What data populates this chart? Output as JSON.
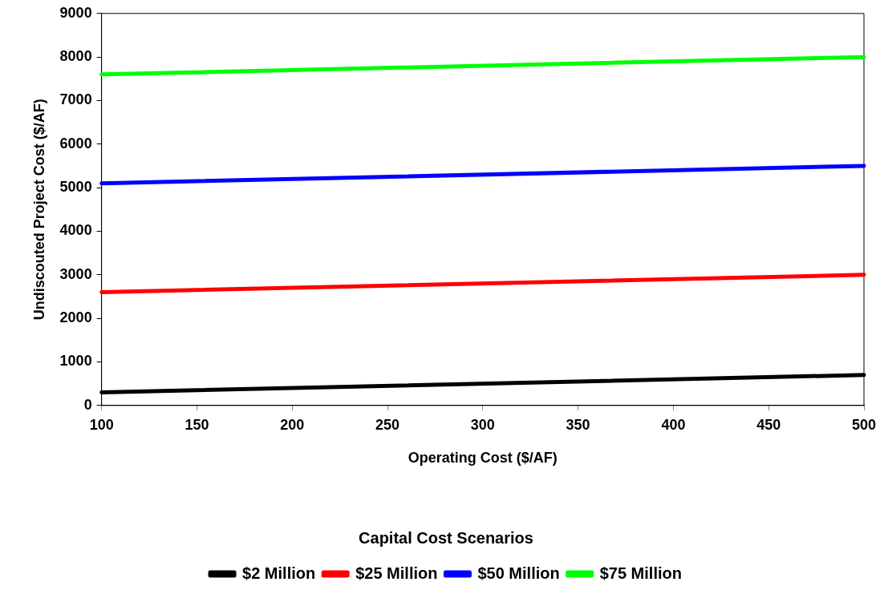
{
  "chart_data": {
    "type": "line",
    "xlabel": "Operating Cost ($/AF)",
    "ylabel": "Undiscouted Project Cost ($/AF)",
    "legend_title": "Capital Cost Scenarios",
    "legend": "bottom",
    "grid": false,
    "marker": "none",
    "line_style": "solid",
    "x": [
      100,
      500
    ],
    "xlim": [
      100,
      500
    ],
    "xticks": [
      100,
      150,
      200,
      250,
      300,
      350,
      400,
      450,
      500
    ],
    "ylim": [
      0,
      9000
    ],
    "yticks": [
      0,
      1000,
      2000,
      3000,
      4000,
      5000,
      6000,
      7000,
      8000,
      9000
    ],
    "series": [
      {
        "name": "$2 Million",
        "color": "#000000",
        "values": [
          300,
          700
        ]
      },
      {
        "name": "$25 Million",
        "color": "#ff0000",
        "values": [
          2600,
          3000
        ]
      },
      {
        "name": "$50 Million",
        "color": "#0000ff",
        "values": [
          5100,
          5500
        ]
      },
      {
        "name": "$75 Million",
        "color": "#00ff00",
        "values": [
          7600,
          8000
        ]
      }
    ]
  }
}
